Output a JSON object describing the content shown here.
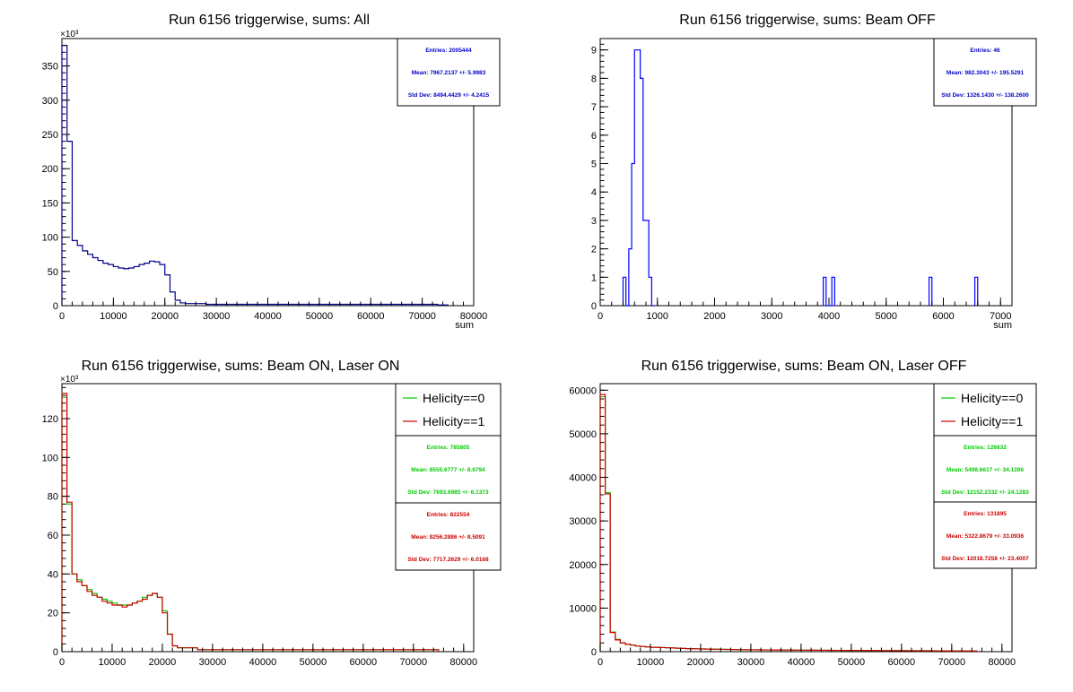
{
  "colors": {
    "all": "#00008b",
    "beam_off": "#0000ff",
    "hel0": "#00cc00",
    "hel1": "#d00000",
    "stats_blue": "#0000cc",
    "stats_green": "#00cc00",
    "stats_red": "#cc0000"
  },
  "chart_data": [
    {
      "id": "p1",
      "type": "histogram",
      "title": "Run 6156 triggerwise, sums: All",
      "xlabel": "sum",
      "xlim": [
        0,
        80000
      ],
      "ylim": [
        0,
        390
      ],
      "y_exponent": "×10³",
      "xticks": [
        0,
        10000,
        20000,
        30000,
        40000,
        50000,
        60000,
        70000,
        80000
      ],
      "yticks": [
        0,
        50,
        100,
        150,
        200,
        250,
        300,
        350
      ],
      "bin_width": 1000,
      "series": [
        {
          "color_key": "all",
          "values": [
            380,
            240,
            95,
            88,
            80,
            75,
            70,
            66,
            62,
            60,
            57,
            55,
            54,
            55,
            57,
            60,
            62,
            65,
            64,
            60,
            45,
            20,
            8,
            4,
            3,
            3,
            3,
            3,
            2,
            2,
            2,
            2,
            2,
            2,
            2,
            2,
            2,
            2,
            2,
            2,
            2,
            2,
            2,
            2,
            2,
            2,
            2,
            2,
            2,
            2,
            2,
            2,
            2,
            2,
            2,
            2,
            2,
            2,
            2,
            2,
            2,
            2,
            2,
            2,
            2,
            2,
            2,
            2,
            2,
            2,
            2,
            2,
            2,
            1,
            1
          ]
        }
      ],
      "stats": [
        {
          "color_key": "stats_blue",
          "lines": [
            "Entries: 2005444",
            "Mean: 7967.2137 +/- 5.9983",
            "Std Dev: 8494.4429 +/- 4.2415"
          ]
        }
      ],
      "legend": []
    },
    {
      "id": "p2",
      "type": "histogram",
      "title": "Run 6156 triggerwise, sums: Beam OFF",
      "xlabel": "sum",
      "xlim": [
        0,
        7200
      ],
      "ylim": [
        0,
        9.4
      ],
      "y_exponent": "",
      "xticks": [
        0,
        1000,
        2000,
        3000,
        4000,
        5000,
        6000,
        7000
      ],
      "yticks": [
        0,
        1,
        2,
        3,
        4,
        5,
        6,
        7,
        8,
        9
      ],
      "bin_width": 50,
      "bins": [
        [
          400,
          1
        ],
        [
          450,
          0
        ],
        [
          500,
          2
        ],
        [
          550,
          5
        ],
        [
          600,
          9
        ],
        [
          650,
          9
        ],
        [
          700,
          8
        ],
        [
          750,
          3
        ],
        [
          800,
          3
        ],
        [
          850,
          1
        ],
        [
          900,
          0
        ],
        [
          3900,
          1
        ],
        [
          3950,
          0
        ],
        [
          4000,
          0
        ],
        [
          4050,
          1
        ],
        [
          5750,
          1
        ],
        [
          6550,
          1
        ]
      ],
      "stats": [
        {
          "color_key": "stats_blue",
          "lines": [
            "Entries: 46",
            "Mean: 982.3043 +/- 195.5291",
            "Std Dev: 1326.1430 +/- 138.2600"
          ]
        }
      ],
      "legend": []
    },
    {
      "id": "p3",
      "type": "histogram",
      "title": "Run 6156 triggerwise, sums: Beam ON, Laser ON",
      "xlabel": "",
      "xlim": [
        0,
        82000
      ],
      "ylim": [
        0,
        138
      ],
      "y_exponent": "×10³",
      "xticks": [
        0,
        10000,
        20000,
        30000,
        40000,
        50000,
        60000,
        70000,
        80000
      ],
      "yticks": [
        0,
        20,
        40,
        60,
        80,
        100,
        120
      ],
      "bin_width": 1000,
      "series": [
        {
          "color_key": "hel0",
          "values": [
            131,
            76,
            40,
            37,
            34,
            32,
            30,
            28,
            27,
            26,
            25,
            24,
            24,
            24,
            25,
            26,
            28,
            29,
            30,
            28,
            21,
            9,
            3,
            2,
            2,
            2,
            2,
            1,
            1,
            1,
            1,
            1,
            1,
            1,
            1,
            1,
            1,
            1,
            1,
            1,
            1,
            1,
            1,
            1,
            1,
            1,
            1,
            1,
            1,
            1,
            1,
            1,
            1,
            1,
            1,
            1,
            1,
            1,
            1,
            1,
            1,
            1,
            1,
            1,
            1,
            1,
            1,
            1,
            1,
            1,
            1,
            1,
            1,
            1,
            1
          ]
        },
        {
          "color_key": "hel1",
          "values": [
            133,
            77,
            40,
            36,
            34,
            31,
            29,
            28,
            26,
            25,
            24,
            24,
            23,
            24,
            25,
            26,
            27,
            29,
            30,
            28,
            20,
            9,
            3,
            2,
            2,
            2,
            2,
            1,
            1,
            1,
            1,
            1,
            1,
            1,
            1,
            1,
            1,
            1,
            1,
            1,
            1,
            1,
            1,
            1,
            1,
            1,
            1,
            1,
            1,
            1,
            1,
            1,
            1,
            1,
            1,
            1,
            1,
            1,
            1,
            1,
            1,
            1,
            1,
            1,
            1,
            1,
            1,
            1,
            1,
            1,
            1,
            1,
            1,
            1,
            1
          ]
        }
      ],
      "stats": [
        {
          "color_key": "stats_green",
          "lines": [
            "Entries: 785805",
            "Mean: 8555.6777 +/- 8.6794",
            "Std Dev: 7693.6985 +/- 6.1373"
          ]
        },
        {
          "color_key": "stats_red",
          "lines": [
            "Entries: 822554",
            "Mean: 8256.2886 +/- 8.5091",
            "Std Dev: 7717.2629 +/- 6.0168"
          ]
        }
      ],
      "legend": [
        {
          "label": "Helicity==0",
          "color_key": "hel0"
        },
        {
          "label": "Helicity==1",
          "color_key": "hel1"
        }
      ]
    },
    {
      "id": "p4",
      "type": "histogram",
      "title": "Run 6156 triggerwise, sums: Beam ON, Laser OFF",
      "xlabel": "",
      "xlim": [
        0,
        82000
      ],
      "ylim": [
        0,
        61500
      ],
      "y_exponent": "",
      "xticks": [
        0,
        10000,
        20000,
        30000,
        40000,
        50000,
        60000,
        70000,
        80000
      ],
      "yticks": [
        0,
        10000,
        20000,
        30000,
        40000,
        50000,
        60000
      ],
      "bin_width": 1000,
      "series": [
        {
          "color_key": "hel0",
          "values": [
            58500,
            36500,
            4500,
            2800,
            2000,
            1700,
            1500,
            1300,
            1200,
            1100,
            1000,
            1000,
            950,
            900,
            850,
            800,
            750,
            700,
            680,
            650,
            620,
            600,
            580,
            560,
            540,
            520,
            500,
            480,
            460,
            440,
            420,
            420,
            410,
            400,
            400,
            390,
            380,
            380,
            370,
            360,
            350,
            350,
            340,
            330,
            320,
            320,
            310,
            300,
            300,
            290,
            280,
            280,
            270,
            260,
            260,
            250,
            250,
            240,
            240,
            230,
            230,
            220,
            220,
            210,
            210,
            200,
            200,
            190,
            190,
            180,
            180,
            170,
            170,
            160,
            160
          ]
        },
        {
          "color_key": "hel1",
          "values": [
            59000,
            36200,
            4400,
            2700,
            2000,
            1700,
            1500,
            1300,
            1200,
            1100,
            1000,
            980,
            940,
            900,
            850,
            800,
            750,
            700,
            670,
            640,
            610,
            590,
            570,
            550,
            530,
            510,
            490,
            470,
            450,
            430,
            420,
            410,
            400,
            400,
            390,
            380,
            370,
            370,
            360,
            350,
            350,
            340,
            330,
            320,
            320,
            310,
            300,
            300,
            290,
            280,
            280,
            270,
            260,
            260,
            250,
            250,
            240,
            240,
            230,
            230,
            220,
            220,
            210,
            210,
            200,
            200,
            190,
            190,
            180,
            180,
            170,
            170,
            160,
            160,
            150
          ]
        }
      ],
      "stats": [
        {
          "color_key": "stats_green",
          "lines": [
            "Entries: 126832",
            "Mean: 5498.6617 +/- 34.1286",
            "Std Dev: 12152.2332 +/- 24.1283"
          ]
        },
        {
          "color_key": "stats_red",
          "lines": [
            "Entries: 131895",
            "Mean: 5322.8679 +/- 33.0936",
            "Std Dev: 12018.7258 +/- 23.4007"
          ]
        }
      ],
      "legend": [
        {
          "label": "Helicity==0",
          "color_key": "hel0"
        },
        {
          "label": "Helicity==1",
          "color_key": "hel1"
        }
      ]
    }
  ]
}
